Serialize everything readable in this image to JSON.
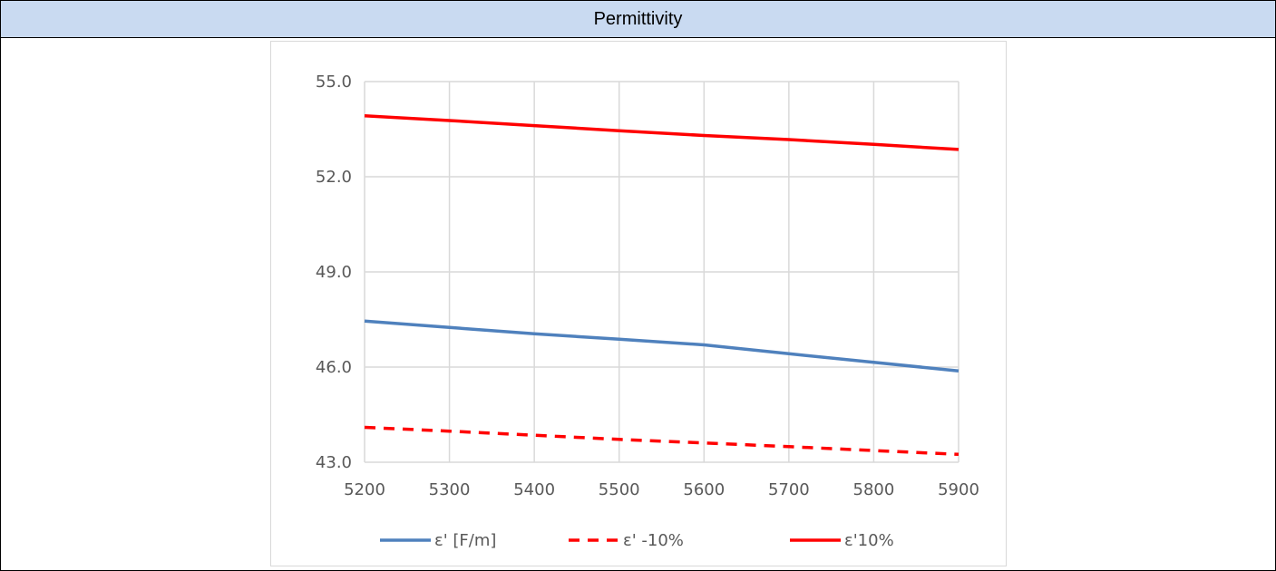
{
  "header": {
    "title": "Permittivity"
  },
  "colors": {
    "header_bg": "#c9daf1",
    "grid": "#d9d9d9",
    "text": "#595959"
  },
  "chart_data": {
    "type": "line",
    "title": "",
    "xlabel": "",
    "ylabel": "",
    "xlim": [
      5200,
      5900
    ],
    "ylim": [
      43.0,
      55.0
    ],
    "x_ticks": [
      5200,
      5300,
      5400,
      5500,
      5600,
      5700,
      5800,
      5900
    ],
    "y_ticks": [
      43.0,
      46.0,
      49.0,
      52.0,
      55.0
    ],
    "y_tick_labels": [
      "43.0",
      "46.0",
      "49.0",
      "52.0",
      "55.0"
    ],
    "grid": true,
    "legend_position": "bottom",
    "x": [
      5200,
      5300,
      5400,
      5500,
      5600,
      5700,
      5800,
      5900
    ],
    "series": [
      {
        "name": "ε' [F/m]",
        "color": "#4f81bd",
        "dash": "solid",
        "values": [
          47.45,
          47.25,
          47.05,
          46.88,
          46.7,
          46.42,
          46.15,
          45.88
        ]
      },
      {
        "name": "ε' -10%",
        "color": "#ff0000",
        "dash": "dashed",
        "values": [
          44.1,
          43.98,
          43.85,
          43.72,
          43.61,
          43.49,
          43.37,
          43.25
        ]
      },
      {
        "name": "ε'10%",
        "color": "#ff0000",
        "dash": "solid",
        "values": [
          53.92,
          53.77,
          53.61,
          53.45,
          53.3,
          53.17,
          53.02,
          52.86
        ]
      }
    ]
  }
}
